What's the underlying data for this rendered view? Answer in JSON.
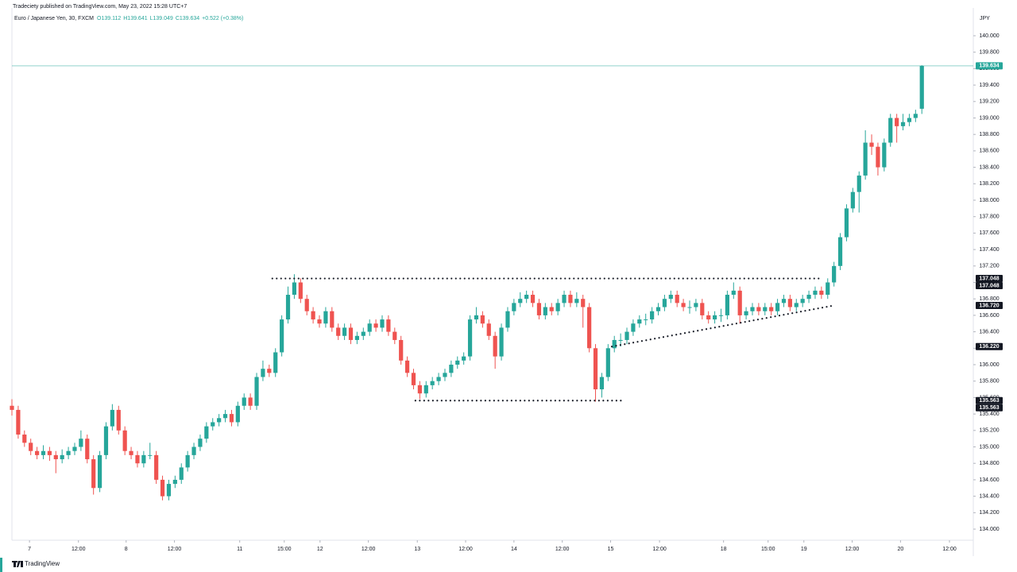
{
  "chart_data": {
    "type": "candlestick",
    "attribution": "Tradeciety published on TradingView.com, May 23, 2022 15:28 UTC+7",
    "symbol": "Euro / Japanese Yen, 30, FXCM",
    "quote": [
      "O139.112",
      "H139.641",
      "L139.049",
      "C139.634",
      "+0.522 (+0.38%)"
    ],
    "currency": "JPY",
    "brand": "TradingView",
    "up_color": "#26a69a",
    "down_color": "#ef5350",
    "xlim": [
      0,
      153.2
    ],
    "ylim": [
      133.865,
      140.338
    ],
    "xticks": [
      {
        "value": 2.8,
        "label": "7"
      },
      {
        "value": 10.6,
        "label": "12:00"
      },
      {
        "value": 18.2,
        "label": "8"
      },
      {
        "value": 25.9,
        "label": "12:00"
      },
      {
        "value": 36.3,
        "label": "11"
      },
      {
        "value": 43.4,
        "label": "15:00"
      },
      {
        "value": 49.1,
        "label": "12"
      },
      {
        "value": 56.8,
        "label": "12:00"
      },
      {
        "value": 64.6,
        "label": "13"
      },
      {
        "value": 72.3,
        "label": "12:00"
      },
      {
        "value": 80,
        "label": "14"
      },
      {
        "value": 87.7,
        "label": "12:00"
      },
      {
        "value": 95.4,
        "label": "15"
      },
      {
        "value": 103.2,
        "label": "12:00"
      },
      {
        "value": 113.4,
        "label": "18"
      },
      {
        "value": 120.5,
        "label": "15:00"
      },
      {
        "value": 126.2,
        "label": "19"
      },
      {
        "value": 133.9,
        "label": "12:00"
      },
      {
        "value": 141.6,
        "label": "20"
      },
      {
        "value": 149.4,
        "label": "12:00"
      }
    ],
    "yticks": [
      {
        "value": 134,
        "label": "134.000"
      },
      {
        "value": 134.2,
        "label": "134.200"
      },
      {
        "value": 134.4,
        "label": "134.400"
      },
      {
        "value": 134.6,
        "label": "134.600"
      },
      {
        "value": 134.8,
        "label": "134.800"
      },
      {
        "value": 135,
        "label": "135.000"
      },
      {
        "value": 135.2,
        "label": "135.200"
      },
      {
        "value": 135.4,
        "label": "135.400"
      },
      {
        "value": 135.6,
        "label": "135.600"
      },
      {
        "value": 135.8,
        "label": "135.800"
      },
      {
        "value": 136,
        "label": "136.000"
      },
      {
        "value": 136.2,
        "label": "136.200"
      },
      {
        "value": 136.4,
        "label": "136.400"
      },
      {
        "value": 136.6,
        "label": "136.600"
      },
      {
        "value": 136.8,
        "label": "136.800"
      },
      {
        "value": 137,
        "label": "137.000"
      },
      {
        "value": 137.2,
        "label": "137.200"
      },
      {
        "value": 137.4,
        "label": "137.400"
      },
      {
        "value": 137.6,
        "label": "137.600"
      },
      {
        "value": 137.8,
        "label": "137.800"
      },
      {
        "value": 138,
        "label": "138.000"
      },
      {
        "value": 138.2,
        "label": "138.200"
      },
      {
        "value": 138.4,
        "label": "138.400"
      },
      {
        "value": 138.6,
        "label": "138.600"
      },
      {
        "value": 138.8,
        "label": "138.800"
      },
      {
        "value": 139,
        "label": "139.000"
      },
      {
        "value": 139.2,
        "label": "139.200"
      },
      {
        "value": 139.4,
        "label": "139.400"
      },
      {
        "value": 139.6,
        "label": "139.600"
      },
      {
        "value": 139.8,
        "label": "139.800"
      },
      {
        "value": 140,
        "label": "140.000"
      }
    ],
    "price_labels": [
      {
        "value": 139.634,
        "label": "139.634",
        "color": "#26a69a"
      },
      {
        "value": 137.048,
        "label": "137.048",
        "color": "#131722"
      },
      {
        "value": 137.048,
        "label": "137.048",
        "color": "#131722"
      },
      {
        "value": 136.72,
        "label": "136.720",
        "color": "#131722"
      },
      {
        "value": 136.22,
        "label": "136.220",
        "color": "#131722"
      },
      {
        "value": 135.563,
        "label": "135.563",
        "color": "#131722"
      },
      {
        "value": 135.563,
        "label": "135.563",
        "color": "#131722"
      }
    ],
    "lines": [
      {
        "x": [
          41.5,
          129.1
        ],
        "y": [
          137.048,
          137.048
        ]
      },
      {
        "x": [
          64.3,
          97.7
        ],
        "y": [
          135.563,
          135.563
        ]
      },
      {
        "x": [
          95.6,
          131.0
        ],
        "y": [
          136.22,
          136.72
        ]
      }
    ],
    "ohlc": [
      [
        135.5,
        135.58,
        135.38,
        135.45
      ],
      [
        135.45,
        135.5,
        135.1,
        135.15
      ],
      [
        135.15,
        135.2,
        135.0,
        135.05
      ],
      [
        135.05,
        135.1,
        134.9,
        134.95
      ],
      [
        134.95,
        135.0,
        134.85,
        134.9
      ],
      [
        134.9,
        135.02,
        134.85,
        134.95
      ],
      [
        134.95,
        135.0,
        134.83,
        134.9
      ],
      [
        134.9,
        134.95,
        134.68,
        134.85
      ],
      [
        134.85,
        134.97,
        134.8,
        134.9
      ],
      [
        134.9,
        135.0,
        134.85,
        134.95
      ],
      [
        134.95,
        135.05,
        134.9,
        135.0
      ],
      [
        135.0,
        135.2,
        134.95,
        135.1
      ],
      [
        135.1,
        135.15,
        134.8,
        134.85
      ],
      [
        134.85,
        134.9,
        134.42,
        134.5
      ],
      [
        134.5,
        134.95,
        134.45,
        134.9
      ],
      [
        134.9,
        135.3,
        134.85,
        135.25
      ],
      [
        135.25,
        135.52,
        135.2,
        135.45
      ],
      [
        135.45,
        135.5,
        135.15,
        135.2
      ],
      [
        135.2,
        135.25,
        134.9,
        134.95
      ],
      [
        134.95,
        135.0,
        134.85,
        134.9
      ],
      [
        134.9,
        134.95,
        134.75,
        134.8
      ],
      [
        134.8,
        134.95,
        134.75,
        134.9
      ],
      [
        134.9,
        135.05,
        134.85,
        134.9
      ],
      [
        134.9,
        134.95,
        134.55,
        134.6
      ],
      [
        134.6,
        134.65,
        134.35,
        134.4
      ],
      [
        134.4,
        134.6,
        134.35,
        134.55
      ],
      [
        134.55,
        134.65,
        134.5,
        134.6
      ],
      [
        134.6,
        134.8,
        134.55,
        134.75
      ],
      [
        134.75,
        134.95,
        134.7,
        134.9
      ],
      [
        134.9,
        135.05,
        134.85,
        135.0
      ],
      [
        135.0,
        135.15,
        134.95,
        135.1
      ],
      [
        135.1,
        135.3,
        135.05,
        135.25
      ],
      [
        135.25,
        135.35,
        135.2,
        135.3
      ],
      [
        135.3,
        135.4,
        135.25,
        135.35
      ],
      [
        135.35,
        135.45,
        135.3,
        135.4
      ],
      [
        135.4,
        135.45,
        135.25,
        135.3
      ],
      [
        135.3,
        135.55,
        135.25,
        135.5
      ],
      [
        135.5,
        135.65,
        135.45,
        135.6
      ],
      [
        135.6,
        135.65,
        135.45,
        135.5
      ],
      [
        135.5,
        135.9,
        135.45,
        135.85
      ],
      [
        135.85,
        136.05,
        135.8,
        135.95
      ],
      [
        135.95,
        136.0,
        135.85,
        135.9
      ],
      [
        135.9,
        136.2,
        135.85,
        136.15
      ],
      [
        136.15,
        136.6,
        136.1,
        136.55
      ],
      [
        136.55,
        136.95,
        136.5,
        136.85
      ],
      [
        136.85,
        137.1,
        136.8,
        137.0
      ],
      [
        137.0,
        137.05,
        136.75,
        136.8
      ],
      [
        136.8,
        136.85,
        136.6,
        136.65
      ],
      [
        136.65,
        136.7,
        136.5,
        136.55
      ],
      [
        136.55,
        136.6,
        136.45,
        136.5
      ],
      [
        136.5,
        136.7,
        136.45,
        136.65
      ],
      [
        136.65,
        136.7,
        136.4,
        136.45
      ],
      [
        136.45,
        136.5,
        136.3,
        136.35
      ],
      [
        136.35,
        136.5,
        136.3,
        136.45
      ],
      [
        136.45,
        136.5,
        136.25,
        136.3
      ],
      [
        136.3,
        136.4,
        136.25,
        136.35
      ],
      [
        136.35,
        136.45,
        136.3,
        136.4
      ],
      [
        136.4,
        136.55,
        136.35,
        136.5
      ],
      [
        136.5,
        136.55,
        136.4,
        136.45
      ],
      [
        136.45,
        136.6,
        136.4,
        136.55
      ],
      [
        136.55,
        136.6,
        136.35,
        136.4
      ],
      [
        136.4,
        136.45,
        136.25,
        136.3
      ],
      [
        136.3,
        136.35,
        136.0,
        136.05
      ],
      [
        136.05,
        136.1,
        135.85,
        135.9
      ],
      [
        135.9,
        135.95,
        135.7,
        135.75
      ],
      [
        135.75,
        135.8,
        135.58,
        135.65
      ],
      [
        135.65,
        135.8,
        135.6,
        135.75
      ],
      [
        135.75,
        135.85,
        135.7,
        135.8
      ],
      [
        135.8,
        135.9,
        135.75,
        135.85
      ],
      [
        135.85,
        135.95,
        135.8,
        135.9
      ],
      [
        135.9,
        136.05,
        135.85,
        136.0
      ],
      [
        136.0,
        136.1,
        135.95,
        136.05
      ],
      [
        136.05,
        136.15,
        136.0,
        136.1
      ],
      [
        136.1,
        136.6,
        136.05,
        136.55
      ],
      [
        136.55,
        136.7,
        136.5,
        136.6
      ],
      [
        136.6,
        136.65,
        136.45,
        136.5
      ],
      [
        136.5,
        136.55,
        136.3,
        136.35
      ],
      [
        136.35,
        136.4,
        135.95,
        136.1
      ],
      [
        136.1,
        136.5,
        136.05,
        136.45
      ],
      [
        136.45,
        136.7,
        136.4,
        136.65
      ],
      [
        136.65,
        136.8,
        136.6,
        136.75
      ],
      [
        136.75,
        136.88,
        136.7,
        136.8
      ],
      [
        136.8,
        136.9,
        136.75,
        136.85
      ],
      [
        136.85,
        136.9,
        136.7,
        136.75
      ],
      [
        136.75,
        136.8,
        136.55,
        136.6
      ],
      [
        136.6,
        136.75,
        136.55,
        136.7
      ],
      [
        136.7,
        136.75,
        136.6,
        136.65
      ],
      [
        136.65,
        136.8,
        136.6,
        136.75
      ],
      [
        136.75,
        136.9,
        136.7,
        136.85
      ],
      [
        136.85,
        136.9,
        136.7,
        136.75
      ],
      [
        136.75,
        136.88,
        136.7,
        136.8
      ],
      [
        136.8,
        136.85,
        136.45,
        136.7
      ],
      [
        136.7,
        136.75,
        136.15,
        136.2
      ],
      [
        136.2,
        136.25,
        135.55,
        135.7
      ],
      [
        135.7,
        135.9,
        135.6,
        135.85
      ],
      [
        135.85,
        136.25,
        135.8,
        136.2
      ],
      [
        136.2,
        136.35,
        136.15,
        136.3
      ],
      [
        136.3,
        136.38,
        136.22,
        136.3
      ],
      [
        136.3,
        136.45,
        136.25,
        136.4
      ],
      [
        136.4,
        136.55,
        136.35,
        136.5
      ],
      [
        136.5,
        136.6,
        136.45,
        136.55
      ],
      [
        136.55,
        136.62,
        136.48,
        136.55
      ],
      [
        136.55,
        136.7,
        136.5,
        136.65
      ],
      [
        136.65,
        136.75,
        136.6,
        136.7
      ],
      [
        136.7,
        136.85,
        136.65,
        136.8
      ],
      [
        136.8,
        136.9,
        136.75,
        136.85
      ],
      [
        136.85,
        136.9,
        136.7,
        136.75
      ],
      [
        136.75,
        136.8,
        136.65,
        136.7
      ],
      [
        136.7,
        136.78,
        136.62,
        136.7
      ],
      [
        136.7,
        136.8,
        136.65,
        136.75
      ],
      [
        136.75,
        136.8,
        136.55,
        136.6
      ],
      [
        136.6,
        136.65,
        136.5,
        136.55
      ],
      [
        136.55,
        136.65,
        136.5,
        136.6
      ],
      [
        136.6,
        136.68,
        136.52,
        136.6
      ],
      [
        136.6,
        136.9,
        136.55,
        136.85
      ],
      [
        136.85,
        137.0,
        136.8,
        136.9
      ],
      [
        136.9,
        136.95,
        136.5,
        136.6
      ],
      [
        136.6,
        136.7,
        136.55,
        136.65
      ],
      [
        136.65,
        136.75,
        136.6,
        136.7
      ],
      [
        136.7,
        136.75,
        136.6,
        136.65
      ],
      [
        136.65,
        136.75,
        136.6,
        136.7
      ],
      [
        136.7,
        136.75,
        136.6,
        136.65
      ],
      [
        136.65,
        136.8,
        136.6,
        136.75
      ],
      [
        136.75,
        136.85,
        136.7,
        136.8
      ],
      [
        136.8,
        136.85,
        136.65,
        136.7
      ],
      [
        136.7,
        136.8,
        136.65,
        136.75
      ],
      [
        136.75,
        136.85,
        136.7,
        136.8
      ],
      [
        136.8,
        136.9,
        136.75,
        136.85
      ],
      [
        136.85,
        136.95,
        136.8,
        136.9
      ],
      [
        136.9,
        136.95,
        136.8,
        136.85
      ],
      [
        136.85,
        137.05,
        136.8,
        137.0
      ],
      [
        137.0,
        137.25,
        136.95,
        137.2
      ],
      [
        137.2,
        137.6,
        137.15,
        137.55
      ],
      [
        137.55,
        137.95,
        137.5,
        137.9
      ],
      [
        137.9,
        138.15,
        137.85,
        138.1
      ],
      [
        138.1,
        138.35,
        137.85,
        138.3
      ],
      [
        138.3,
        138.85,
        138.25,
        138.7
      ],
      [
        138.7,
        138.8,
        138.55,
        138.65
      ],
      [
        138.65,
        138.7,
        138.3,
        138.4
      ],
      [
        138.4,
        138.75,
        138.35,
        138.7
      ],
      [
        138.7,
        139.05,
        138.65,
        139.0
      ],
      [
        139.0,
        139.05,
        138.7,
        138.9
      ],
      [
        138.9,
        139.05,
        138.85,
        138.95
      ],
      [
        138.95,
        139.05,
        138.9,
        139.0
      ],
      [
        139.0,
        139.1,
        138.95,
        139.05
      ],
      [
        139.112,
        139.641,
        139.049,
        139.634
      ]
    ]
  }
}
